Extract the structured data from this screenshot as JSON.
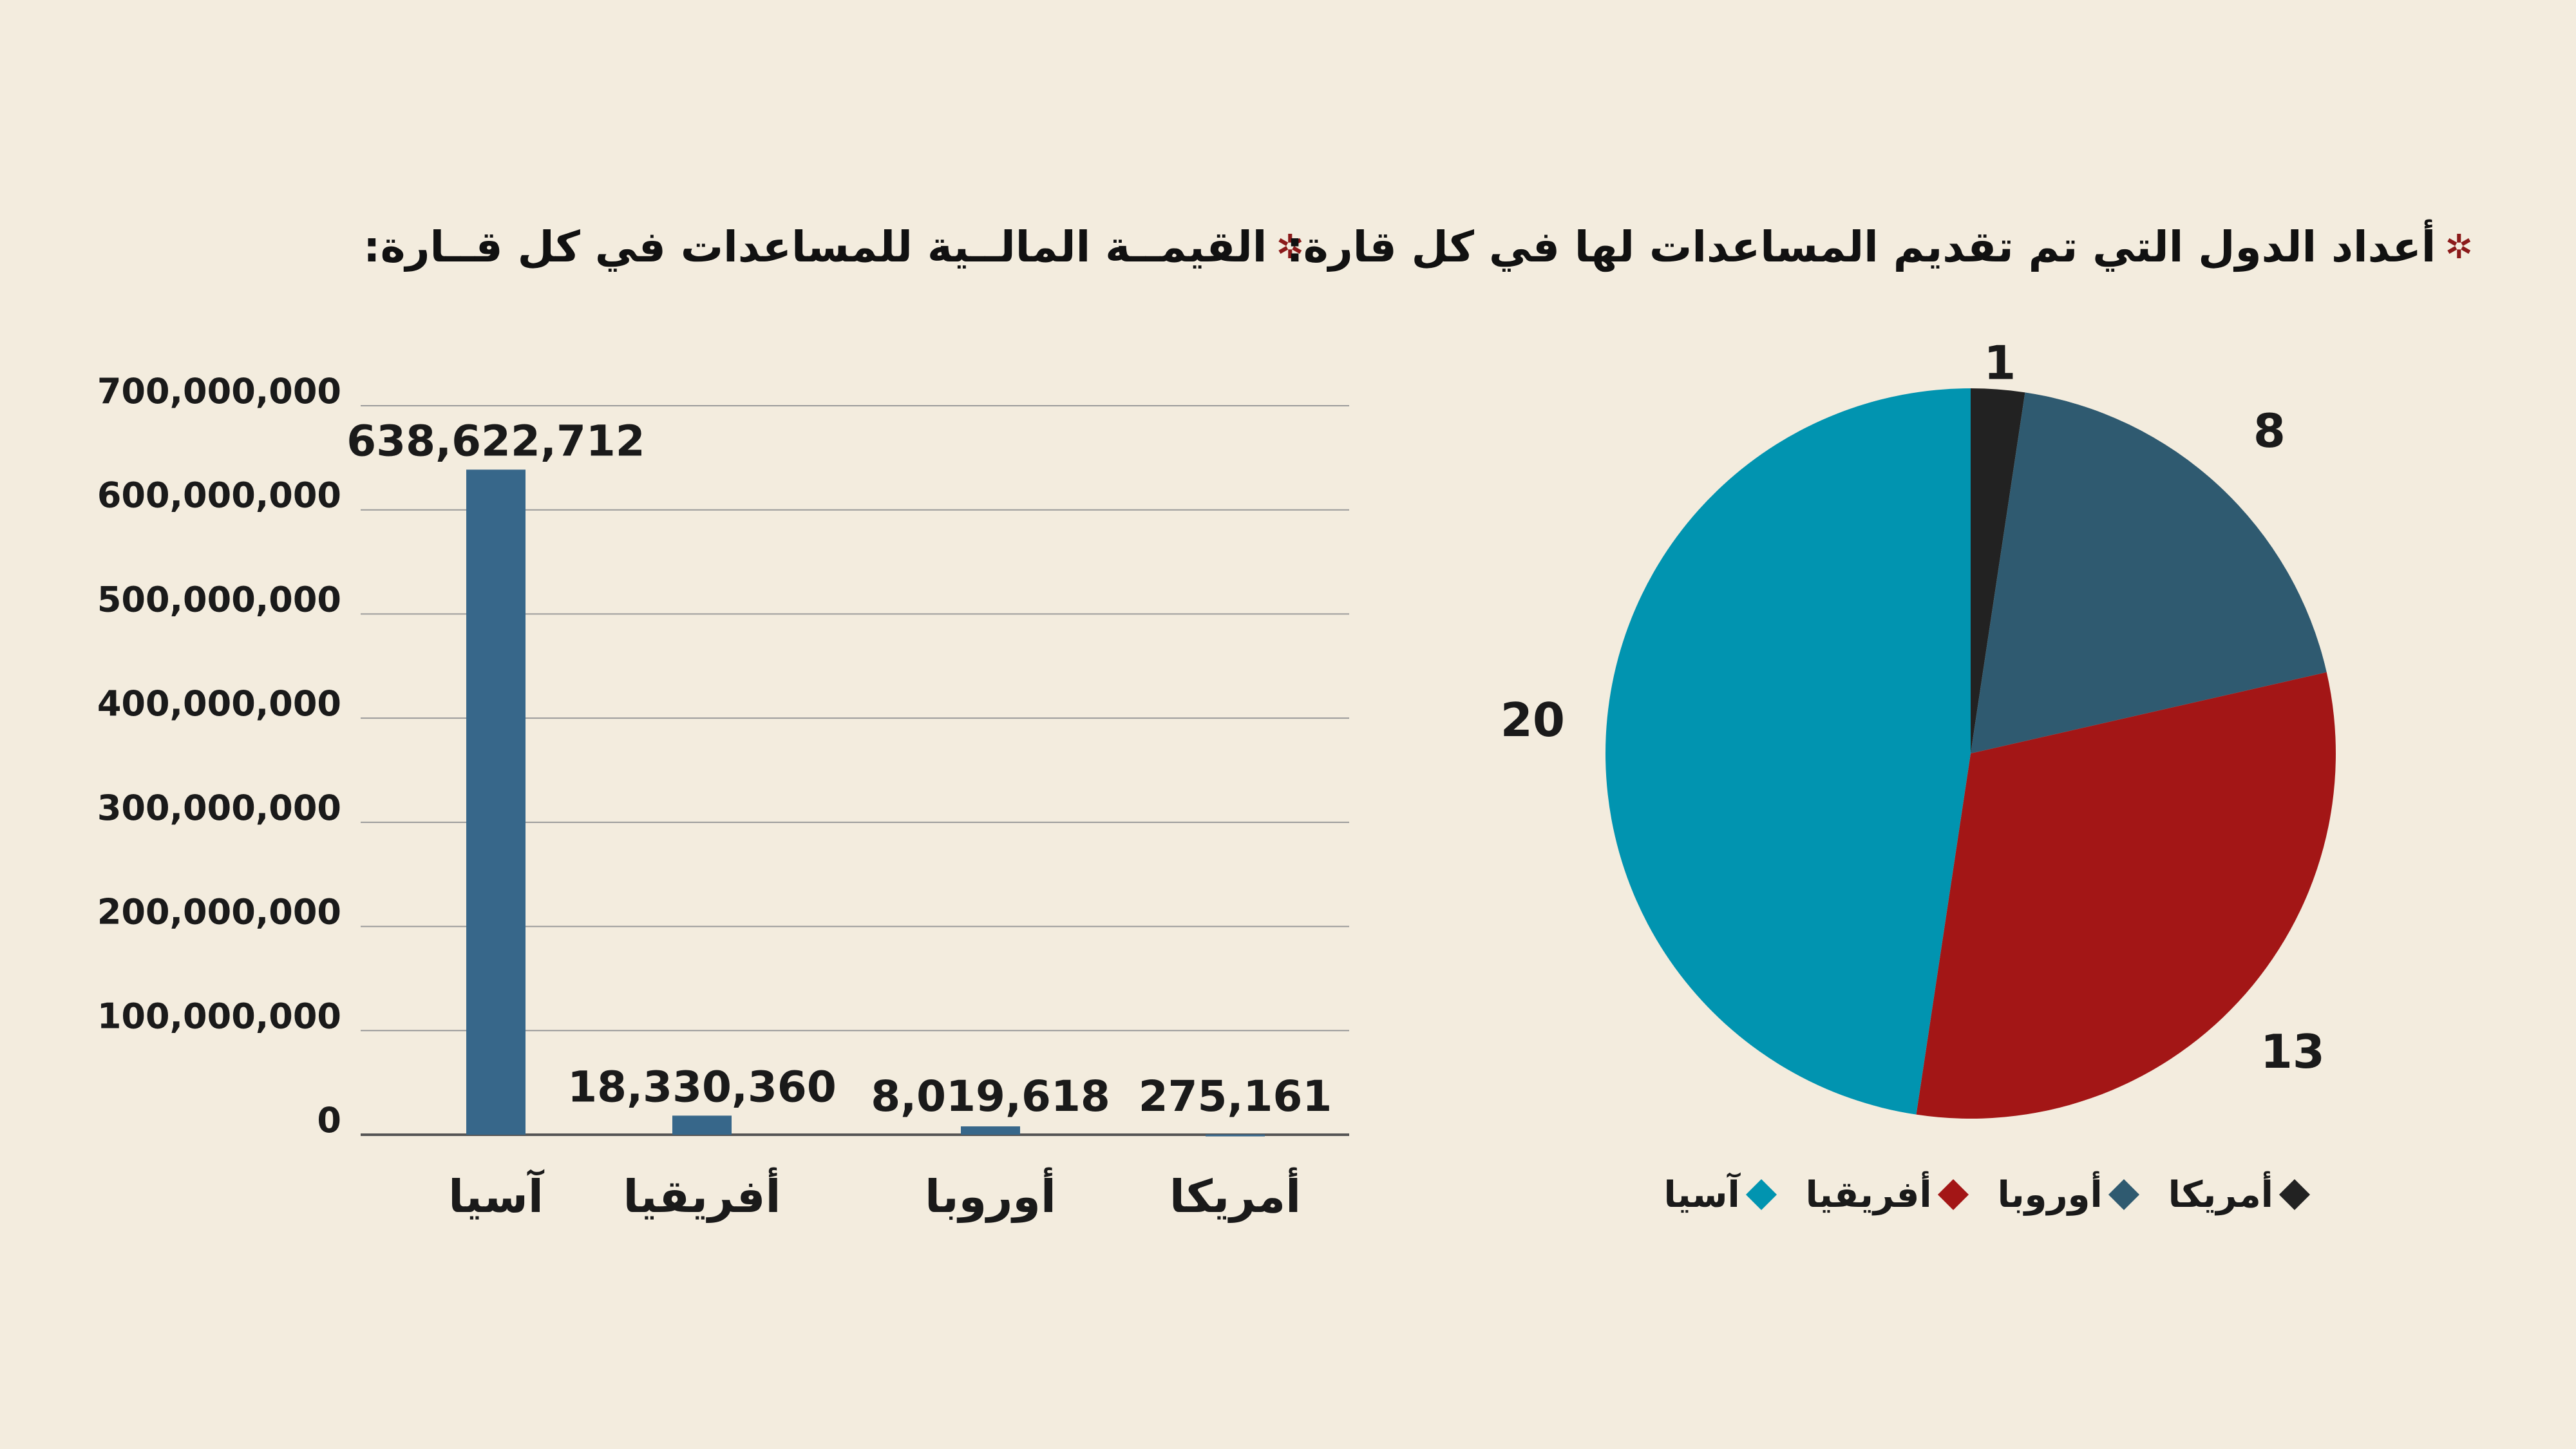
{
  "titles": {
    "bar": "القيمــة  المالــية للمساعدات في كل قــارة:",
    "pie": "أعداد الدول التي تم تقديم المساعدات لها في كل قارة:",
    "bullet": "✲"
  },
  "colors": {
    "background": "#f3ecde",
    "bar": "#37678a",
    "grid": "#9a9a9a",
    "text": "#1a1a1a",
    "asia": "#0194b0",
    "africa": "#a31616",
    "europe": "#2f5a70",
    "america": "#222222"
  },
  "chart_data": [
    {
      "type": "bar",
      "categories": [
        "آسيا",
        "أفريقيا",
        "أوروبا",
        "أمريكا"
      ],
      "values": [
        638622712,
        18330360,
        8019618,
        275161
      ],
      "value_labels": [
        "638,622,712",
        "18,330,360",
        "8,019,618",
        "275,161"
      ],
      "yticks": [
        "0",
        "100,000,000",
        "200,000,000",
        "300,000,000",
        "400,000,000",
        "500,000,000",
        "600,000,000",
        "700,000,000"
      ],
      "ylim": [
        0,
        700000000
      ],
      "grid": true
    },
    {
      "type": "pie",
      "categories": [
        "أمريكا",
        "أوروبا",
        "أفريقيا",
        "آسيا"
      ],
      "values": [
        1,
        8,
        13,
        20
      ],
      "legend": [
        "أمريكا",
        "أوروبا",
        "أفريقيا",
        "آسيا"
      ],
      "legend_placement": "bottom"
    }
  ]
}
